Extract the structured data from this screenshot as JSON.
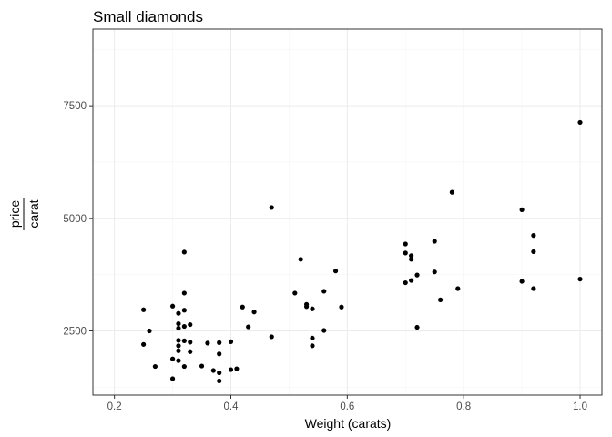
{
  "chart_data": {
    "type": "scatter",
    "title": "Small diamonds",
    "xlabel": "Weight (carats)",
    "ylabel": {
      "numerator": "price",
      "denominator": "carat"
    },
    "xlim": [
      0.163,
      1.0375
    ],
    "ylim": [
      1075,
      9200
    ],
    "x_ticks": [
      0.2,
      0.4,
      0.6,
      0.8,
      1.0
    ],
    "x_tick_labels": [
      "0.2",
      "0.4",
      "0.6",
      "0.8",
      "1.0"
    ],
    "y_ticks": [
      2500,
      5000,
      7500
    ],
    "y_tick_labels": [
      "2500",
      "5000",
      "7500"
    ],
    "grid": true,
    "theme": "bw",
    "point_color": "#000000",
    "points": [
      {
        "x": 0.25,
        "y": 2970
      },
      {
        "x": 0.25,
        "y": 2200
      },
      {
        "x": 0.26,
        "y": 2500
      },
      {
        "x": 0.27,
        "y": 1710
      },
      {
        "x": 0.3,
        "y": 3050
      },
      {
        "x": 0.3,
        "y": 1880
      },
      {
        "x": 0.3,
        "y": 1440
      },
      {
        "x": 0.31,
        "y": 2890
      },
      {
        "x": 0.31,
        "y": 2660
      },
      {
        "x": 0.31,
        "y": 2560
      },
      {
        "x": 0.31,
        "y": 2290
      },
      {
        "x": 0.31,
        "y": 2170
      },
      {
        "x": 0.31,
        "y": 2060
      },
      {
        "x": 0.31,
        "y": 1840
      },
      {
        "x": 0.32,
        "y": 4250
      },
      {
        "x": 0.32,
        "y": 3340
      },
      {
        "x": 0.32,
        "y": 2960
      },
      {
        "x": 0.32,
        "y": 2600
      },
      {
        "x": 0.32,
        "y": 2280
      },
      {
        "x": 0.32,
        "y": 1710
      },
      {
        "x": 0.33,
        "y": 2640
      },
      {
        "x": 0.33,
        "y": 2250
      },
      {
        "x": 0.33,
        "y": 2040
      },
      {
        "x": 0.35,
        "y": 1720
      },
      {
        "x": 0.36,
        "y": 2230
      },
      {
        "x": 0.37,
        "y": 1620
      },
      {
        "x": 0.38,
        "y": 2240
      },
      {
        "x": 0.38,
        "y": 1990
      },
      {
        "x": 0.38,
        "y": 1570
      },
      {
        "x": 0.38,
        "y": 1390
      },
      {
        "x": 0.4,
        "y": 2260
      },
      {
        "x": 0.4,
        "y": 1640
      },
      {
        "x": 0.41,
        "y": 1660
      },
      {
        "x": 0.42,
        "y": 3030
      },
      {
        "x": 0.43,
        "y": 2590
      },
      {
        "x": 0.44,
        "y": 2920
      },
      {
        "x": 0.47,
        "y": 5240
      },
      {
        "x": 0.47,
        "y": 2370
      },
      {
        "x": 0.51,
        "y": 3340
      },
      {
        "x": 0.52,
        "y": 4090
      },
      {
        "x": 0.53,
        "y": 3090
      },
      {
        "x": 0.53,
        "y": 3040
      },
      {
        "x": 0.54,
        "y": 2990
      },
      {
        "x": 0.54,
        "y": 2340
      },
      {
        "x": 0.54,
        "y": 2170
      },
      {
        "x": 0.56,
        "y": 3380
      },
      {
        "x": 0.56,
        "y": 2510
      },
      {
        "x": 0.58,
        "y": 3830
      },
      {
        "x": 0.59,
        "y": 3030
      },
      {
        "x": 0.7,
        "y": 4430
      },
      {
        "x": 0.7,
        "y": 4230
      },
      {
        "x": 0.7,
        "y": 3570
      },
      {
        "x": 0.71,
        "y": 4170
      },
      {
        "x": 0.71,
        "y": 4090
      },
      {
        "x": 0.71,
        "y": 3620
      },
      {
        "x": 0.72,
        "y": 3740
      },
      {
        "x": 0.72,
        "y": 2580
      },
      {
        "x": 0.75,
        "y": 4490
      },
      {
        "x": 0.75,
        "y": 3810
      },
      {
        "x": 0.76,
        "y": 3190
      },
      {
        "x": 0.78,
        "y": 5580
      },
      {
        "x": 0.79,
        "y": 3440
      },
      {
        "x": 0.9,
        "y": 5190
      },
      {
        "x": 0.9,
        "y": 3600
      },
      {
        "x": 0.92,
        "y": 4620
      },
      {
        "x": 0.92,
        "y": 4260
      },
      {
        "x": 0.92,
        "y": 3440
      },
      {
        "x": 1.0,
        "y": 7130
      },
      {
        "x": 1.0,
        "y": 3650
      }
    ]
  }
}
